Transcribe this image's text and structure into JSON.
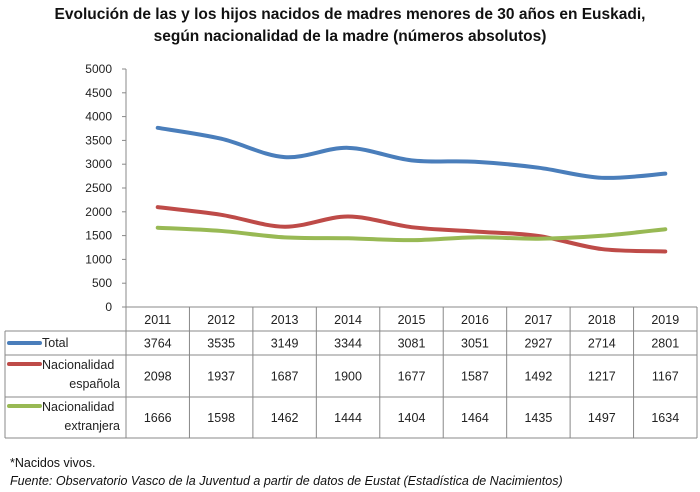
{
  "chart_data": {
    "type": "line",
    "title": "Evolución de las y los  hijos nacidos de madres menores de 30 años en Euskadi,",
    "subtitle": "según nacionalidad de la madre (números absolutos)",
    "categories": [
      "2011",
      "2012",
      "2013",
      "2014",
      "2015",
      "2016",
      "2017",
      "2018",
      "2019"
    ],
    "ylim": [
      0,
      5000
    ],
    "yticks": [
      0,
      500,
      1000,
      1500,
      2000,
      2500,
      3000,
      3500,
      4000,
      4500,
      5000
    ],
    "grid": false,
    "legend": "data-table",
    "series": [
      {
        "name": "Total",
        "lines": [
          "Total"
        ],
        "color": "#4a7ebb",
        "values": [
          3764,
          3535,
          3149,
          3344,
          3081,
          3051,
          2927,
          2714,
          2801
        ]
      },
      {
        "name": "Nacionalidad española",
        "lines": [
          "Nacionalidad",
          "española"
        ],
        "color": "#be4b48",
        "values": [
          2098,
          1937,
          1687,
          1900,
          1677,
          1587,
          1492,
          1217,
          1167
        ]
      },
      {
        "name": "Nacionalidad extranjera",
        "lines": [
          "Nacionalidad",
          "extranjera"
        ],
        "color": "#98b954",
        "values": [
          1666,
          1598,
          1462,
          1444,
          1404,
          1464,
          1435,
          1497,
          1634
        ]
      }
    ]
  },
  "notes": {
    "footnote": "*Nacidos vivos.",
    "source": "Fuente: Observatorio Vasco de la Juventud a partir de datos de Eustat (Estadística de Nacimientos)"
  }
}
